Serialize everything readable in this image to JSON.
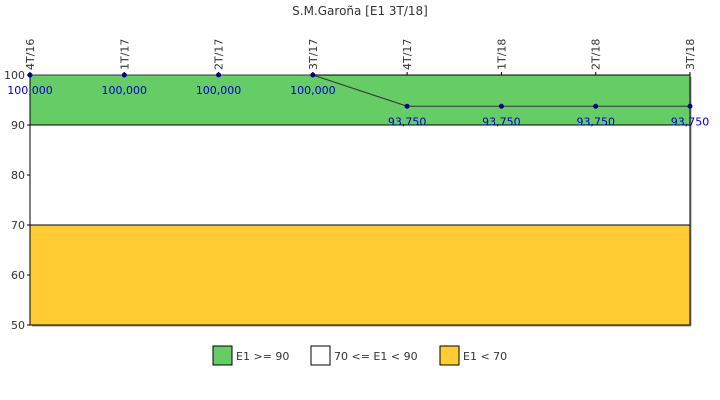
{
  "chart_data": {
    "type": "line",
    "title": "S.M.Garoña [E1 3T/18]",
    "categories": [
      "4T/16",
      "1T/17",
      "2T/17",
      "3T/17",
      "4T/17",
      "1T/18",
      "2T/18",
      "3T/18"
    ],
    "series": [
      {
        "values": [
          100.0,
          100.0,
          100.0,
          100.0,
          93.75,
          93.75,
          93.75,
          93.75
        ],
        "labels": [
          "100,000",
          "100,000",
          "100,000",
          "100,000",
          "93,750",
          "93,750",
          "93,750",
          "93,750"
        ],
        "color": "#000080"
      }
    ],
    "ylim": [
      50,
      100
    ],
    "yticks": [
      {
        "value": 50,
        "label": "50"
      },
      {
        "value": 60,
        "label": "60"
      },
      {
        "value": 70,
        "label": "70"
      },
      {
        "value": 80,
        "label": "80"
      },
      {
        "value": 90,
        "label": "90"
      },
      {
        "value": 100,
        "label": "100"
      }
    ],
    "bands": [
      {
        "name": "E1 >= 90",
        "from": 90,
        "to": 100,
        "color": "#66cc66"
      },
      {
        "name": "70 <= E1 < 90",
        "from": 70,
        "to": 90,
        "color": "#ffffff"
      },
      {
        "name": "E1 < 70",
        "from": 50,
        "to": 70,
        "color": "#ffcc33"
      }
    ],
    "legend_position": "bottom-center",
    "grid": false
  }
}
